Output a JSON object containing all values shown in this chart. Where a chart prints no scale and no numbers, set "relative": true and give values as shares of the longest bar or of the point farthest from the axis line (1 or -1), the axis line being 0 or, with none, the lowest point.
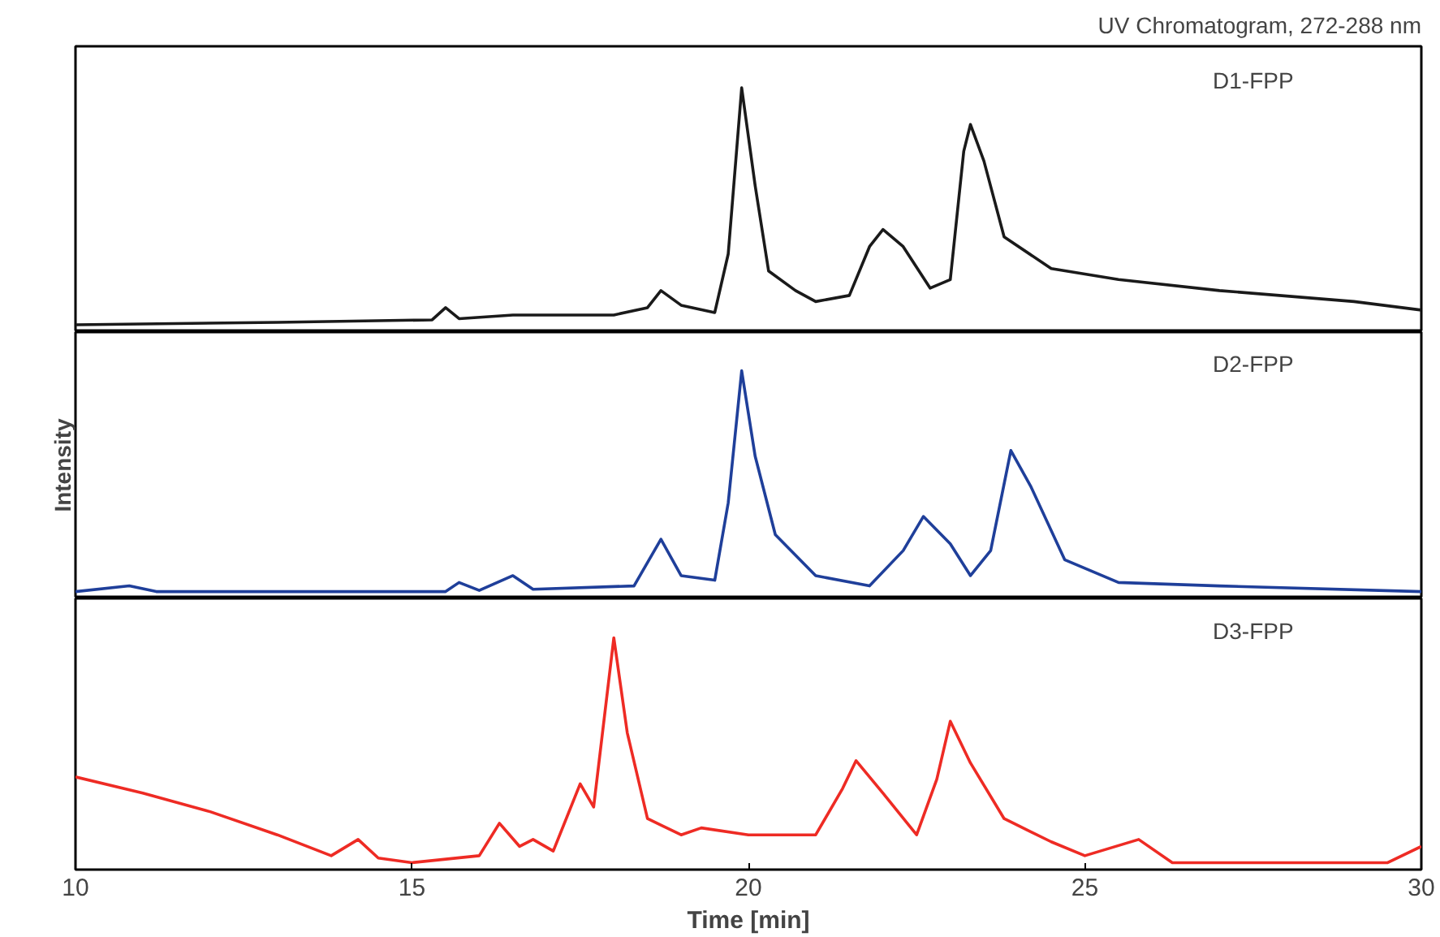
{
  "chart_data": [
    {
      "type": "line",
      "title": "UV Chromatogram, 272-288 nm",
      "relative": true,
      "annotations": [
        "D1-FPP"
      ],
      "tick_labels": false,
      "xlim": [
        10,
        30
      ],
      "grid": false,
      "x": [
        10,
        13,
        15.3,
        15.5,
        15.7,
        16.5,
        18.0,
        18.5,
        18.7,
        19.0,
        19.5,
        19.7,
        19.9,
        20.1,
        20.3,
        20.7,
        21.0,
        21.5,
        21.8,
        22.0,
        22.3,
        22.7,
        23.0,
        23.2,
        23.3,
        23.5,
        23.8,
        24.5,
        25.5,
        27,
        29,
        30
      ],
      "series": [
        {
          "color": "#1a1a1a",
          "values": [
            0.03,
            0.04,
            0.05,
            0.1,
            0.055,
            0.07,
            0.07,
            0.1,
            0.17,
            0.11,
            0.08,
            0.32,
            1.0,
            0.6,
            0.25,
            0.17,
            0.125,
            0.15,
            0.35,
            0.42,
            0.35,
            0.18,
            0.215,
            0.74,
            0.85,
            0.7,
            0.39,
            0.26,
            0.215,
            0.17,
            0.125,
            0.09
          ]
        }
      ]
    },
    {
      "type": "line",
      "ylabel": "Intensity",
      "relative": true,
      "annotations": [
        "D2-FPP"
      ],
      "tick_labels": false,
      "xlim": [
        10,
        30
      ],
      "grid": false,
      "x": [
        10,
        10.8,
        11.2,
        15.5,
        15.7,
        16.0,
        16.5,
        16.8,
        18.3,
        18.7,
        19.0,
        19.5,
        19.7,
        19.9,
        20.1,
        20.4,
        21.0,
        21.8,
        22.3,
        22.6,
        23.0,
        23.3,
        23.6,
        23.9,
        24.2,
        24.7,
        25.5,
        27,
        30
      ],
      "series": [
        {
          "color": "#1f3f9a",
          "values": [
            0.03,
            0.055,
            0.03,
            0.03,
            0.07,
            0.035,
            0.1,
            0.04,
            0.055,
            0.26,
            0.1,
            0.08,
            0.42,
            1.0,
            0.625,
            0.28,
            0.1,
            0.055,
            0.21,
            0.36,
            0.24,
            0.1,
            0.21,
            0.65,
            0.49,
            0.17,
            0.07,
            0.055,
            0.03
          ]
        }
      ]
    },
    {
      "type": "line",
      "xlabel": "Time [min]",
      "relative": true,
      "annotations": [
        "D3-FPP"
      ],
      "tick_labels": "x",
      "xlim": [
        10,
        30
      ],
      "xticks": [
        10,
        15,
        20,
        25,
        30
      ],
      "grid": false,
      "x": [
        10,
        11,
        12,
        13,
        13.8,
        14.2,
        14.5,
        15,
        16,
        16.3,
        16.6,
        16.8,
        17.1,
        17.5,
        17.7,
        18.0,
        18.2,
        18.5,
        19,
        19.3,
        20,
        21,
        21.4,
        21.6,
        22.0,
        22.5,
        22.8,
        23.0,
        23.3,
        23.8,
        24.5,
        25,
        25.8,
        26.3,
        28,
        29.5,
        30
      ],
      "series": [
        {
          "color": "#ee2b24",
          "values": [
            0.4,
            0.33,
            0.25,
            0.15,
            0.06,
            0.13,
            0.05,
            0.03,
            0.06,
            0.2,
            0.1,
            0.13,
            0.08,
            0.37,
            0.27,
            1.0,
            0.59,
            0.22,
            0.15,
            0.18,
            0.15,
            0.15,
            0.35,
            0.47,
            0.33,
            0.15,
            0.39,
            0.64,
            0.46,
            0.22,
            0.12,
            0.06,
            0.13,
            0.03,
            0.03,
            0.03,
            0.1
          ]
        }
      ]
    }
  ]
}
